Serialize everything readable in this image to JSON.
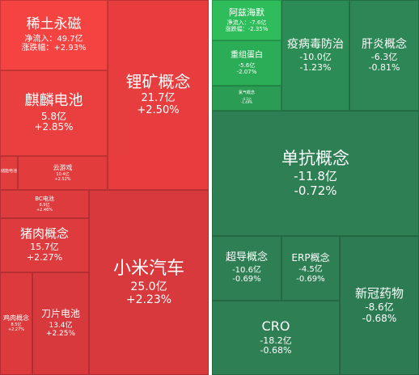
{
  "tiles": [
    {
      "name": "稀土永磁",
      "lines": [
        "净流入：49.7亿",
        "涨跌幅：+2.93%"
      ]
    },
    {
      "name": "锂矿概念",
      "lines": [
        "21.7亿",
        "+2.50%"
      ]
    },
    {
      "name": "麒麟电池",
      "lines": [
        "5.8亿",
        "+2.85%"
      ]
    },
    {
      "name": "储能电池",
      "lines": []
    },
    {
      "name": "云游戏",
      "lines": [
        "10.4亿",
        "+2.52%"
      ]
    },
    {
      "name": "BC电池",
      "lines": [
        "8.9亿",
        "+2.46%"
      ]
    },
    {
      "name": "猪肉概念",
      "lines": [
        "15.7亿",
        "+2.27%"
      ]
    },
    {
      "name": "小米汽车",
      "lines": [
        "25.0亿",
        "+2.23%"
      ]
    },
    {
      "name": "鸡肉概念",
      "lines": [
        "8.5亿",
        "+2.27%"
      ]
    },
    {
      "name": "刀片电池",
      "lines": [
        "13.4亿",
        "+2.25%"
      ]
    },
    {
      "name": "阿兹海默",
      "lines": [
        "净流入：-7.6亿",
        "涨跌幅：-2.35%"
      ]
    },
    {
      "name": "重组蛋白",
      "lines": [
        "-5.6亿",
        "-2.07%"
      ]
    },
    {
      "name": "氯气概念",
      "lines": [
        "-4.1亿",
        "-1.49%"
      ]
    },
    {
      "name": "疫病毒防治",
      "lines": [
        "-10.0亿",
        "-1.23%"
      ]
    },
    {
      "name": "肝炎概念",
      "lines": [
        "-6.3亿",
        "-0.81%"
      ]
    },
    {
      "name": "单抗概念",
      "lines": [
        "-11.8亿",
        "-0.72%"
      ]
    },
    {
      "name": "超导概念",
      "lines": [
        "-10.6亿",
        "-0.69%"
      ]
    },
    {
      "name": "ERP概念",
      "lines": [
        "-4.5亿",
        "-0.69%"
      ]
    },
    {
      "name": "CRO",
      "lines": [
        "-18.2亿",
        "-0.68%"
      ]
    },
    {
      "name": "新冠药物",
      "lines": [
        "-8.6亿",
        "-0.68%"
      ]
    }
  ]
}
